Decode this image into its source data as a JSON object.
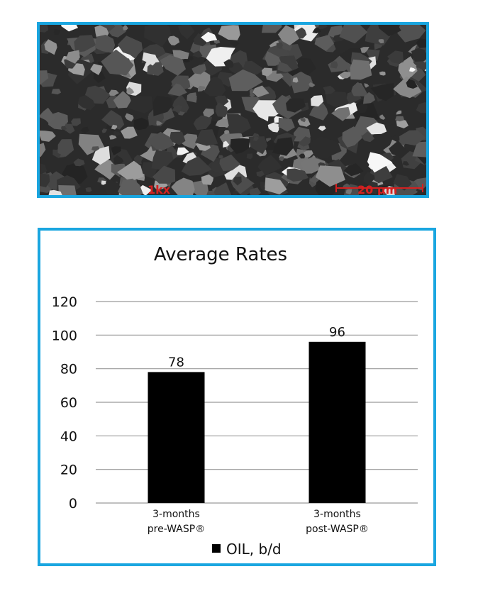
{
  "micrograph": {
    "magnification_label": "1kx",
    "scale_label": "20 µm"
  },
  "chart_data": {
    "type": "bar",
    "title": "Average Rates",
    "categories": [
      [
        "3-months",
        "pre-WASP®"
      ],
      [
        "3-months",
        "post-WASP®"
      ]
    ],
    "series": [
      {
        "name": "OIL, b/d",
        "values": [
          78,
          96
        ],
        "color": "#000000"
      }
    ],
    "yticks": [
      0,
      20,
      40,
      60,
      80,
      100,
      120
    ],
    "ylim": [
      0,
      120
    ],
    "grid": true,
    "legend": "bottom",
    "xlabel": "",
    "ylabel": ""
  }
}
